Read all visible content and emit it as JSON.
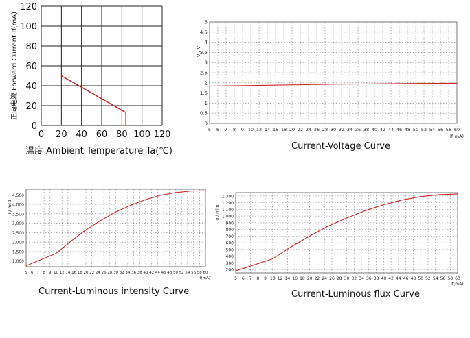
{
  "chart_data": [
    {
      "id": "derating",
      "type": "line",
      "xlabel": "温度 Ambient Temperature Ta(℃)",
      "ylabel": "正向电流 Forward Current If(mA)",
      "xlim": [
        0,
        120
      ],
      "ylim": [
        0,
        120
      ],
      "xticks": [
        "0",
        "20",
        "40",
        "60",
        "80",
        "100",
        "120"
      ],
      "yticks": [
        "0",
        "20",
        "40",
        "60",
        "80",
        "100",
        "120"
      ],
      "grid": true,
      "series": [
        {
          "color": "#cc2222",
          "points": [
            [
              20,
              50
            ],
            [
              84,
              13
            ],
            [
              84,
              0
            ]
          ]
        }
      ]
    },
    {
      "id": "cv",
      "type": "line",
      "caption": "Current-Voltage Curve",
      "xlabel": "If(mA)",
      "ylabel": "V / V",
      "xlim": [
        5,
        60
      ],
      "ylim": [
        0,
        5
      ],
      "xticks": [
        "5",
        "6",
        "7",
        "8",
        "9",
        "10",
        "12",
        "14",
        "16",
        "18",
        "20",
        "22",
        "24",
        "26",
        "28",
        "30",
        "32",
        "34",
        "36",
        "38",
        "40",
        "42",
        "44",
        "46",
        "48",
        "50",
        "52",
        "54",
        "56",
        "58",
        "60"
      ],
      "yticks": [
        "0",
        "0.5",
        "1",
        "1.5",
        "2",
        "2.5",
        "3",
        "3.5",
        "4",
        "4.5",
        "5"
      ],
      "grid": true,
      "series": [
        {
          "color": "#cc2222",
          "points": [
            [
              5,
              1.84
            ],
            [
              10,
              1.87
            ],
            [
              20,
              1.9
            ],
            [
              30,
              1.93
            ],
            [
              40,
              1.95
            ],
            [
              50,
              1.97
            ],
            [
              60,
              1.98
            ]
          ]
        }
      ]
    },
    {
      "id": "cli",
      "type": "line",
      "caption": "Current-Luminous intensity Curve",
      "xlabel": "If(mA)",
      "ylabel": "I / mcd",
      "xlim": [
        5,
        60
      ],
      "ylim": [
        700,
        4800
      ],
      "xticks": [
        "5",
        "6",
        "7",
        "8",
        "9",
        "10",
        "12",
        "14",
        "16",
        "18",
        "20",
        "22",
        "24",
        "26",
        "28",
        "30",
        "32",
        "34",
        "36",
        "38",
        "40",
        "42",
        "44",
        "46",
        "48",
        "50",
        "52",
        "54",
        "56",
        "58",
        "60"
      ],
      "yticks": [
        "1,000",
        "1,500",
        "2,000",
        "2,500",
        "3,000",
        "3,500",
        "4,000",
        "4,500"
      ],
      "grid": true,
      "series": [
        {
          "color": "#cc2222",
          "points": [
            [
              5,
              750
            ],
            [
              10,
              1400
            ],
            [
              15,
              2050
            ],
            [
              20,
              2650
            ],
            [
              25,
              3150
            ],
            [
              30,
              3600
            ],
            [
              35,
              3950
            ],
            [
              40,
              4250
            ],
            [
              45,
              4480
            ],
            [
              50,
              4620
            ],
            [
              55,
              4700
            ],
            [
              60,
              4720
            ]
          ]
        }
      ]
    },
    {
      "id": "clf",
      "type": "line",
      "caption": "Current-Luminous flux Curve",
      "xlabel": "If(mA)",
      "ylabel": "φ / mlm",
      "xlim": [
        5,
        60
      ],
      "ylim": [
        150,
        1350
      ],
      "xticks": [
        "5",
        "6",
        "7",
        "8",
        "9",
        "10",
        "12",
        "14",
        "16",
        "18",
        "20",
        "22",
        "24",
        "26",
        "28",
        "30",
        "32",
        "34",
        "36",
        "38",
        "40",
        "42",
        "44",
        "46",
        "48",
        "50",
        "52",
        "54",
        "56",
        "58",
        "60"
      ],
      "yticks": [
        "200",
        "300",
        "400",
        "500",
        "600",
        "700",
        "800",
        "900",
        "1,000",
        "1,100",
        "1,200",
        "1,300"
      ],
      "grid": true,
      "series": [
        {
          "color": "#cc2222",
          "points": [
            [
              5,
              180
            ],
            [
              10,
              360
            ],
            [
              15,
              540
            ],
            [
              20,
              700
            ],
            [
              25,
              850
            ],
            [
              30,
              970
            ],
            [
              35,
              1080
            ],
            [
              40,
              1170
            ],
            [
              45,
              1240
            ],
            [
              50,
              1290
            ],
            [
              55,
              1320
            ],
            [
              60,
              1330
            ]
          ]
        }
      ]
    }
  ]
}
